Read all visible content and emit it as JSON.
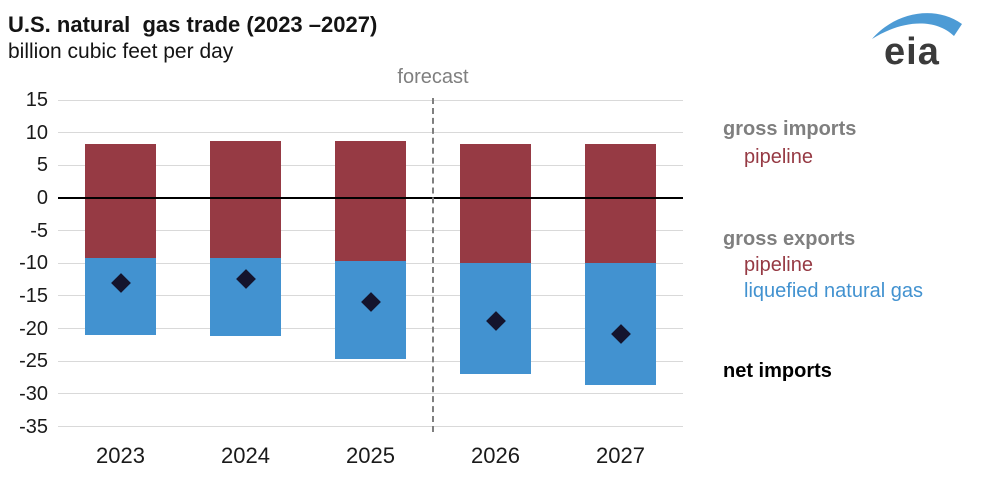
{
  "header": {
    "title": "U.S. natural  gas trade (2023 –2027)",
    "subtitle": "billion cubic feet per day"
  },
  "logo": {
    "text": "eia"
  },
  "forecast_label": "forecast",
  "legend": {
    "gross_imports": "gross imports",
    "imports_pipeline": "pipeline",
    "gross_exports": "gross exports",
    "exports_pipeline": "pipeline",
    "exports_lng": "liquefied natural gas",
    "net_imports": "net imports"
  },
  "colors": {
    "pipeline_maroon": "#963a44",
    "lng_blue": "#4292d0",
    "net_diamond": "#14142d",
    "gridline": "#d9d9d9",
    "zero_line": "#000000",
    "forecast_gray": "#7f7f7f"
  },
  "chart_data": {
    "type": "bar",
    "stacked": true,
    "title": "U.S. natural gas trade (2023 –2027)",
    "ylabel": "billion cubic feet per day",
    "categories": [
      "2023",
      "2024",
      "2025",
      "2026",
      "2027"
    ],
    "series": [
      {
        "name": "gross imports pipeline",
        "color": "#963a44",
        "values": [
          8.2,
          8.7,
          8.8,
          8.3,
          8.3
        ]
      },
      {
        "name": "gross exports pipeline",
        "color": "#963a44",
        "values": [
          -9.2,
          -9.2,
          -9.7,
          -9.9,
          -10.0
        ]
      },
      {
        "name": "gross exports liquefied natural gas",
        "color": "#4292d0",
        "values": [
          -11.8,
          -11.9,
          -15.0,
          -17.0,
          -18.7
        ]
      }
    ],
    "markers": {
      "name": "net imports",
      "shape": "diamond",
      "color": "#14142d",
      "values": [
        -13.0,
        -12.4,
        -16.0,
        -18.8,
        -20.8
      ]
    },
    "ylim": [
      -35,
      15
    ],
    "yticks": [
      15,
      10,
      5,
      0,
      -5,
      -10,
      -15,
      -20,
      -25,
      -30,
      -35
    ],
    "grid": true,
    "legend_position": "right",
    "forecast": {
      "label": "forecast",
      "after_category": "2025"
    }
  }
}
